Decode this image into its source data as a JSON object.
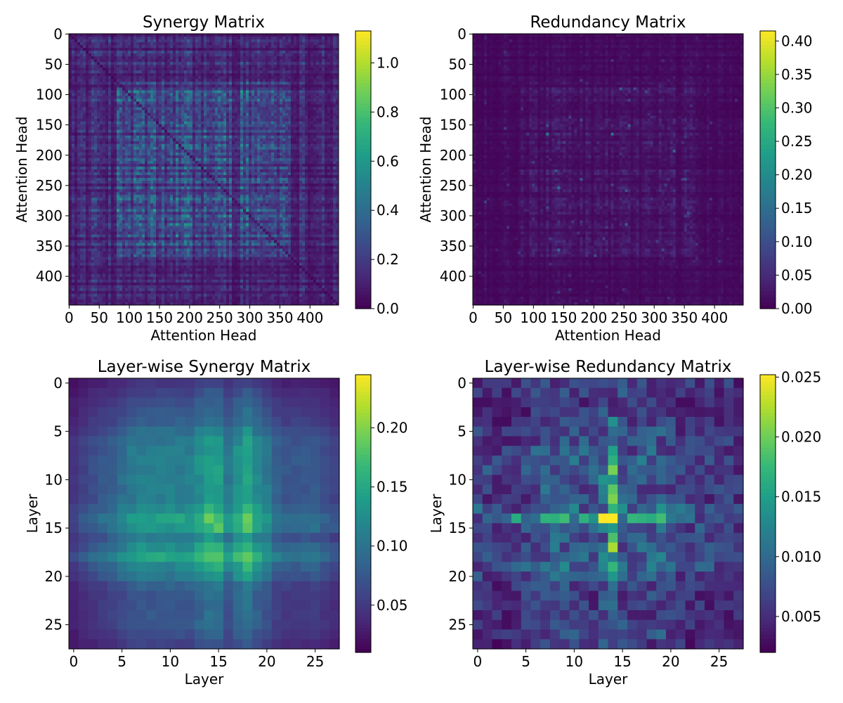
{
  "chart_data": [
    {
      "type": "heatmap",
      "title": "Synergy Matrix",
      "xlabel": "Attention Head",
      "ylabel": "Attention Head",
      "size": 448,
      "xticks": [
        0,
        50,
        100,
        150,
        200,
        250,
        300,
        350,
        400
      ],
      "yticks": [
        0,
        50,
        100,
        150,
        200,
        250,
        300,
        350,
        400
      ],
      "colorscale": "viridis",
      "vmin": 0.0,
      "vmax": 1.13,
      "colorbar_ticks": [
        "0.0",
        "0.2",
        "0.4",
        "0.6",
        "0.8",
        "1.0"
      ],
      "colorbar_values": [
        0.0,
        0.2,
        0.4,
        0.6,
        0.8,
        1.0
      ],
      "pattern": "noisy dense matrix; higher values in central block (heads ~80-370), low diagonal"
    },
    {
      "type": "heatmap",
      "title": "Redundancy Matrix",
      "xlabel": "Attention Head",
      "ylabel": "Attention Head",
      "size": 448,
      "xticks": [
        0,
        50,
        100,
        150,
        200,
        250,
        300,
        350,
        400
      ],
      "yticks": [
        0,
        50,
        100,
        150,
        200,
        250,
        300,
        350,
        400
      ],
      "colorscale": "viridis",
      "vmin": 0.0,
      "vmax": 0.415,
      "colorbar_ticks": [
        "0.00",
        "0.05",
        "0.10",
        "0.15",
        "0.20",
        "0.25",
        "0.30",
        "0.35",
        "0.40"
      ],
      "colorbar_values": [
        0.0,
        0.05,
        0.1,
        0.15,
        0.2,
        0.25,
        0.3,
        0.35,
        0.4
      ],
      "pattern": "mostly near zero with sparse brighter speckles in central region"
    },
    {
      "type": "heatmap",
      "title": "Layer-wise Synergy Matrix",
      "xlabel": "Layer",
      "ylabel": "Layer",
      "size": 28,
      "xticks": [
        0,
        5,
        10,
        15,
        20,
        25
      ],
      "yticks": [
        0,
        5,
        10,
        15,
        20,
        25
      ],
      "colorscale": "viridis",
      "vmin": 0.01,
      "vmax": 0.245,
      "colorbar_ticks": [
        "0.05",
        "0.10",
        "0.15",
        "0.20"
      ],
      "colorbar_values": [
        0.05,
        0.1,
        0.15,
        0.2
      ],
      "row_profile": [
        0.02,
        0.03,
        0.04,
        0.05,
        0.06,
        0.08,
        0.1,
        0.11,
        0.11,
        0.11,
        0.11,
        0.11,
        0.11,
        0.14,
        0.18,
        0.17,
        0.1,
        0.15,
        0.19,
        0.13,
        0.1,
        0.06,
        0.05,
        0.05,
        0.05,
        0.05,
        0.04,
        0.03
      ]
    },
    {
      "type": "heatmap",
      "title": "Layer-wise Redundancy Matrix",
      "xlabel": "Layer",
      "ylabel": "Layer",
      "size": 28,
      "xticks": [
        0,
        5,
        10,
        15,
        20,
        25
      ],
      "yticks": [
        0,
        5,
        10,
        15,
        20,
        25
      ],
      "colorscale": "viridis",
      "vmin": 0.002,
      "vmax": 0.0252,
      "colorbar_ticks": [
        "0.005",
        "0.010",
        "0.015",
        "0.020",
        "0.025"
      ],
      "colorbar_values": [
        0.005,
        0.01,
        0.015,
        0.02,
        0.025
      ],
      "row_profile": [
        0.006,
        0.005,
        0.004,
        0.004,
        0.005,
        0.006,
        0.007,
        0.008,
        0.009,
        0.009,
        0.009,
        0.008,
        0.007,
        0.011,
        0.012,
        0.009,
        0.007,
        0.008,
        0.008,
        0.01,
        0.007,
        0.006,
        0.005,
        0.005,
        0.005,
        0.005,
        0.005,
        0.004
      ]
    }
  ]
}
